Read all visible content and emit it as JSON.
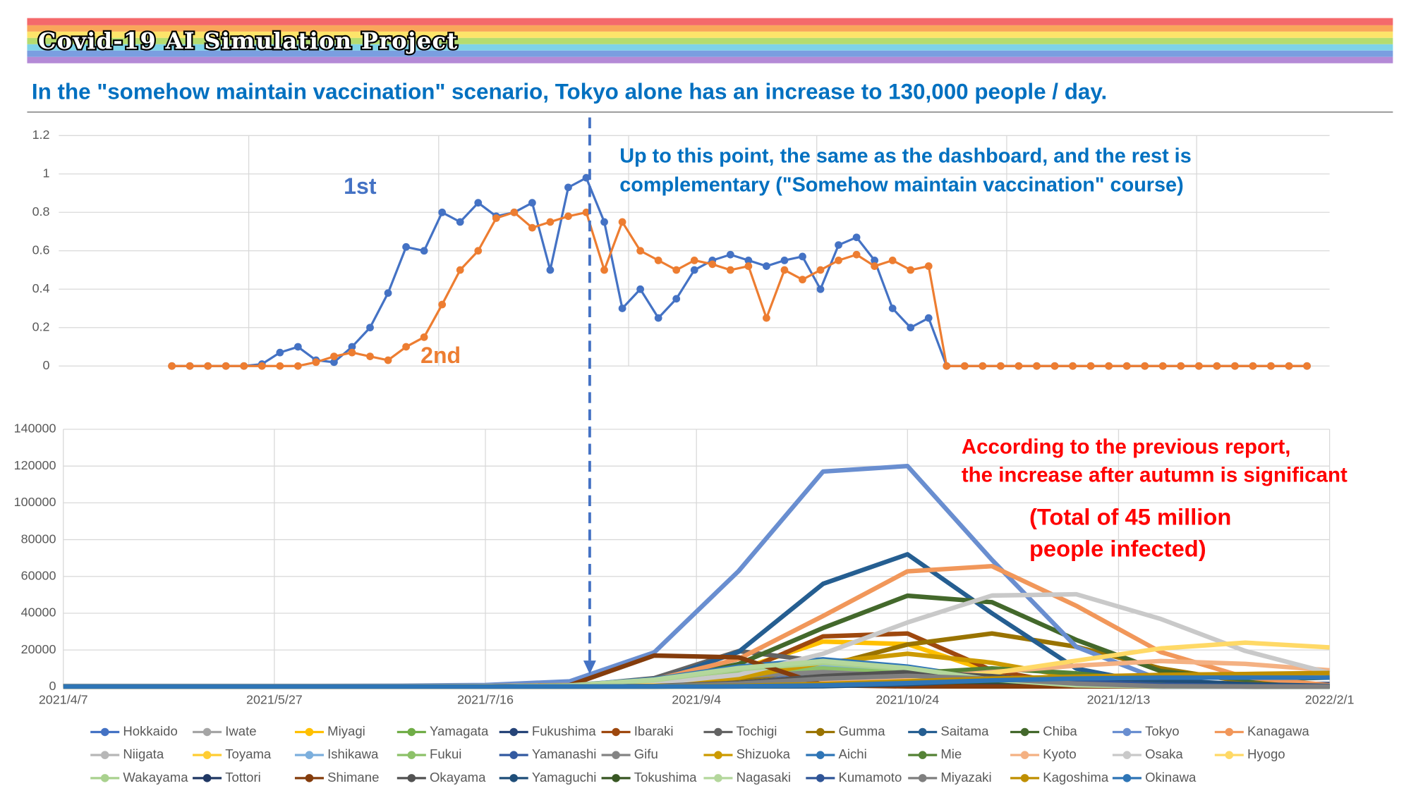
{
  "title": "Covid-19 AI Simulation Project",
  "subtitle": "In the \"somehow maintain vaccination\" scenario, Tokyo alone has an increase to 130,000 people / day.",
  "chart_data": [
    {
      "type": "line",
      "ylim": [
        0,
        1.2
      ],
      "yticks": [
        0,
        0.2,
        0.4,
        0.6,
        0.8,
        1,
        1.2
      ],
      "annotation": [
        "Up to this point, the same as the dashboard, and the rest is",
        "complementary (\"Somehow maintain vaccination\" course)"
      ],
      "series": [
        {
          "name": "1st",
          "color": "#4472c4",
          "values": [
            0,
            0,
            0,
            0,
            0,
            0.01,
            0.07,
            0.1,
            0.03,
            0.02,
            0.1,
            0.2,
            0.38,
            0.62,
            0.6,
            0.8,
            0.75,
            0.85,
            0.78,
            0.8,
            0.85,
            0.5,
            0.93,
            0.98,
            0.75,
            0.3,
            0.4,
            0.25,
            0.35,
            0.5,
            0.55,
            0.58,
            0.55,
            0.52,
            0.55,
            0.57,
            0.4,
            0.63,
            0.67,
            0.55,
            0.3,
            0.2,
            0.25,
            0,
            0,
            0,
            0,
            0,
            0,
            0,
            0,
            0,
            0,
            0,
            0,
            0,
            0,
            0,
            0,
            0,
            0,
            0,
            0,
            0
          ]
        },
        {
          "name": "2nd",
          "color": "#ed7d31",
          "values": [
            0,
            0,
            0,
            0,
            0,
            0,
            0,
            0,
            0.02,
            0.05,
            0.07,
            0.05,
            0.03,
            0.1,
            0.15,
            0.32,
            0.5,
            0.6,
            0.77,
            0.8,
            0.72,
            0.75,
            0.78,
            0.8,
            0.5,
            0.75,
            0.6,
            0.55,
            0.5,
            0.55,
            0.53,
            0.5,
            0.52,
            0.25,
            0.5,
            0.45,
            0.5,
            0.55,
            0.58,
            0.52,
            0.55,
            0.5,
            0.52,
            0,
            0,
            0,
            0,
            0,
            0,
            0,
            0,
            0,
            0,
            0,
            0,
            0,
            0,
            0,
            0,
            0,
            0,
            0,
            0,
            0
          ]
        }
      ]
    },
    {
      "type": "line",
      "ylim": [
        0,
        140000
      ],
      "yticks": [
        0,
        20000,
        40000,
        60000,
        80000,
        100000,
        120000,
        140000
      ],
      "xlim": [
        "2021/4/7",
        "2022/2/1"
      ],
      "xticks": [
        "2021/4/7",
        "2021/5/27",
        "2021/7/16",
        "2021/9/4",
        "2021/10/24",
        "2021/12/13",
        "2022/2/1"
      ],
      "annotations": [
        [
          "According to the previous report,",
          "the increase after autumn is significant"
        ],
        [
          "(Total of 45 million",
          "people infected)"
        ]
      ],
      "x": [
        "2021/4/7",
        "2021/4/27",
        "2021/5/17",
        "2021/6/6",
        "2021/6/26",
        "2021/7/16",
        "2021/8/5",
        "2021/8/25",
        "2021/9/14",
        "2021/10/4",
        "2021/10/24",
        "2021/11/13",
        "2021/12/3",
        "2021/12/23",
        "2022/1/12",
        "2022/2/1"
      ],
      "series": [
        {
          "name": "Hokkaido",
          "color": "#4472c4",
          "values": [
            300,
            300,
            300,
            300,
            300,
            300,
            300,
            500,
            2500,
            6600,
            9000,
            6600,
            2500,
            500,
            300,
            300
          ]
        },
        {
          "name": "Iwate",
          "color": "#a5a5a5",
          "values": [
            200,
            200,
            200,
            200,
            200,
            200,
            200,
            840,
            2200,
            3000,
            2200,
            840,
            200,
            200,
            200,
            200
          ]
        },
        {
          "name": "Miyagi",
          "color": "#ffc000",
          "values": [
            200,
            200,
            200,
            200,
            200,
            200,
            300,
            1350,
            9400,
            24600,
            23200,
            8100,
            1000,
            200,
            200,
            200
          ]
        },
        {
          "name": "Yamagata",
          "color": "#70ad47",
          "values": [
            200,
            200,
            200,
            200,
            200,
            200,
            200,
            340,
            1700,
            4400,
            6000,
            4400,
            1700,
            340,
            200,
            200
          ]
        },
        {
          "name": "Fukushima",
          "color": "#264478",
          "values": [
            200,
            200,
            200,
            200,
            200,
            200,
            200,
            200,
            280,
            1400,
            3650,
            5000,
            3650,
            2000,
            1500,
            1500
          ]
        },
        {
          "name": "Ibaraki",
          "color": "#9e480e",
          "values": [
            200,
            200,
            200,
            200,
            200,
            300,
            400,
            600,
            7500,
            27400,
            29000,
            9000,
            800,
            300,
            200,
            200
          ]
        },
        {
          "name": "Tochigi",
          "color": "#636363",
          "values": [
            200,
            200,
            200,
            200,
            200,
            200,
            300,
            4700,
            19400,
            13700,
            1600,
            300,
            200,
            200,
            200,
            200
          ]
        },
        {
          "name": "Gumma",
          "color": "#997300",
          "values": [
            200,
            200,
            200,
            200,
            200,
            200,
            300,
            800,
            3200,
            11000,
            23000,
            29000,
            21800,
            10000,
            2700,
            500
          ]
        },
        {
          "name": "Saitama",
          "color": "#255e91",
          "values": [
            300,
            300,
            300,
            300,
            300,
            400,
            600,
            2800,
            19000,
            56000,
            72000,
            40000,
            9900,
            1100,
            300,
            200
          ]
        },
        {
          "name": "Chiba",
          "color": "#43682b",
          "values": [
            200,
            200,
            200,
            200,
            200,
            300,
            700,
            2900,
            12400,
            32000,
            49500,
            46000,
            25500,
            8500,
            4000,
            5000
          ]
        },
        {
          "name": "Tokyo",
          "color": "#698ed0",
          "values": [
            500,
            500,
            500,
            500,
            600,
            1000,
            3000,
            18700,
            63000,
            117000,
            120000,
            69000,
            21700,
            3800,
            1000,
            500
          ]
        },
        {
          "name": "Kanagawa",
          "color": "#f1975a",
          "values": [
            300,
            300,
            300,
            300,
            300,
            400,
            1000,
            3800,
            15200,
            38500,
            62800,
            65600,
            44000,
            18900,
            5200,
            900
          ]
        },
        {
          "name": "Niigata",
          "color": "#b7b7b7",
          "values": [
            200,
            200,
            200,
            200,
            200,
            200,
            200,
            450,
            2200,
            5800,
            8000,
            5800,
            2200,
            450,
            200,
            200
          ]
        },
        {
          "name": "Toyama",
          "color": "#ffcd33",
          "values": [
            200,
            200,
            200,
            200,
            200,
            200,
            200,
            220,
            1100,
            2900,
            4000,
            2900,
            1100,
            220,
            200,
            200
          ]
        },
        {
          "name": "Ishikawa",
          "color": "#7cafdd",
          "values": [
            200,
            200,
            200,
            200,
            200,
            200,
            670,
            3400,
            8800,
            12000,
            8800,
            3400,
            670,
            200,
            200,
            200
          ]
        },
        {
          "name": "Fukui",
          "color": "#8cc168",
          "values": [
            200,
            200,
            200,
            200,
            200,
            200,
            560,
            2800,
            7300,
            10000,
            7300,
            2800,
            560,
            200,
            200,
            200
          ]
        },
        {
          "name": "Yamanashi",
          "color": "#335aa1",
          "values": [
            200,
            200,
            200,
            200,
            200,
            200,
            200,
            220,
            1100,
            2900,
            4000,
            2900,
            1100,
            220,
            200,
            200
          ]
        },
        {
          "name": "Gifu",
          "color": "#848484",
          "values": [
            200,
            200,
            200,
            200,
            200,
            200,
            450,
            2200,
            5800,
            8000,
            5800,
            2200,
            450,
            200,
            200,
            200
          ]
        },
        {
          "name": "Shizuoka",
          "color": "#cc9a00",
          "values": [
            200,
            200,
            200,
            200,
            200,
            200,
            200,
            1000,
            5000,
            13100,
            18000,
            13100,
            5000,
            1000,
            300,
            200
          ]
        },
        {
          "name": "Aichi",
          "color": "#2e75b6",
          "values": [
            200,
            200,
            200,
            200,
            200,
            200,
            840,
            4200,
            11000,
            15000,
            11000,
            4200,
            840,
            300,
            300,
            300
          ]
        },
        {
          "name": "Mie",
          "color": "#548235",
          "values": [
            200,
            200,
            200,
            200,
            200,
            200,
            200,
            200,
            560,
            2800,
            7300,
            10000,
            7300,
            2800,
            560,
            300
          ]
        },
        {
          "name": "Kyoto",
          "color": "#f4b183",
          "values": [
            200,
            200,
            200,
            200,
            200,
            200,
            200,
            300,
            800,
            2000,
            4500,
            8000,
            11500,
            14000,
            12500,
            9000
          ]
        },
        {
          "name": "Osaka",
          "color": "#c9c9c9",
          "values": [
            300,
            300,
            300,
            300,
            300,
            400,
            800,
            1800,
            6600,
            18000,
            35000,
            49600,
            50300,
            36900,
            19500,
            7500
          ]
        },
        {
          "name": "Hyogo",
          "color": "#ffd966",
          "values": [
            300,
            300,
            300,
            300,
            300,
            400,
            600,
            800,
            1000,
            1500,
            3100,
            7500,
            14200,
            20900,
            24000,
            21400
          ]
        },
        {
          "name": "Wakayama",
          "color": "#a9d18e",
          "values": [
            200,
            200,
            200,
            200,
            200,
            200,
            730,
            3600,
            9500,
            13000,
            9500,
            3600,
            730,
            200,
            200,
            200
          ]
        },
        {
          "name": "Tottori",
          "color": "#203864",
          "values": [
            100,
            100,
            100,
            100,
            100,
            100,
            100,
            110,
            560,
            1460,
            2000,
            1460,
            560,
            110,
            100,
            100
          ]
        },
        {
          "name": "Shimane",
          "color": "#843c0c",
          "values": [
            200,
            200,
            200,
            200,
            200,
            200,
            900,
            17000,
            16000,
            900,
            200,
            200,
            200,
            200,
            200,
            200
          ]
        },
        {
          "name": "Okayama",
          "color": "#525252",
          "values": [
            200,
            200,
            200,
            200,
            200,
            200,
            200,
            450,
            2200,
            5800,
            8000,
            5800,
            2200,
            450,
            200,
            200
          ]
        },
        {
          "name": "Yamaguchi",
          "color": "#1f4e79",
          "values": [
            200,
            200,
            200,
            200,
            200,
            200,
            200,
            200,
            200,
            280,
            1400,
            3650,
            5000,
            3650,
            1400,
            500
          ]
        },
        {
          "name": "Tokushima",
          "color": "#385723",
          "values": [
            100,
            100,
            100,
            100,
            100,
            100,
            100,
            100,
            170,
            840,
            2200,
            3000,
            2200,
            840,
            170,
            100
          ]
        },
        {
          "name": "Nagasaki",
          "color": "#b4d79c",
          "values": [
            200,
            200,
            200,
            200,
            200,
            200,
            780,
            3900,
            10200,
            14000,
            10200,
            3900,
            780,
            200,
            200,
            200
          ]
        },
        {
          "name": "Kumamoto",
          "color": "#2f5597",
          "values": [
            200,
            200,
            200,
            200,
            200,
            200,
            200,
            200,
            220,
            1100,
            2900,
            4000,
            2900,
            1100,
            400,
            300
          ]
        },
        {
          "name": "Miyazaki",
          "color": "#7f7f7f",
          "values": [
            200,
            200,
            200,
            200,
            200,
            200,
            200,
            340,
            1700,
            4400,
            6000,
            4400,
            1700,
            340,
            200,
            200
          ]
        },
        {
          "name": "Kagoshima",
          "color": "#bf8f00",
          "values": [
            200,
            200,
            200,
            200,
            200,
            200,
            200,
            300,
            600,
            1500,
            3000,
            4500,
            5500,
            6500,
            7000,
            7500
          ]
        },
        {
          "name": "Okinawa",
          "color": "#2e75b6",
          "values": [
            200,
            200,
            200,
            200,
            200,
            200,
            200,
            200,
            300,
            800,
            2000,
            3500,
            4500,
            5000,
            5000,
            5000
          ]
        }
      ]
    }
  ]
}
